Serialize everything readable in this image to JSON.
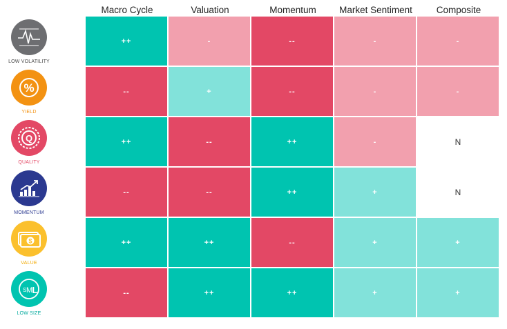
{
  "columns": [
    "Macro Cycle",
    "Valuation",
    "Momentum",
    "Market Sentiment",
    "Composite"
  ],
  "colors": {
    "strong_pos": "#00c4b0",
    "weak_pos": "#82e2da",
    "strong_neg": "#e34865",
    "weak_neg": "#f2a0ae",
    "neutral": "#ffffff"
  },
  "factors": [
    {
      "label": "LOW VOLATILITY",
      "icon": "low-volatility-icon",
      "color": "#6d6e71",
      "label_color": "#444444",
      "cells": [
        "++",
        "-",
        "--",
        "-",
        "-"
      ]
    },
    {
      "label": "YIELD",
      "icon": "percent-icon",
      "color": "#f39212",
      "label_color": "#f39212",
      "cells": [
        "--",
        "+",
        "--",
        "-",
        "-"
      ]
    },
    {
      "label": "QUALITY",
      "icon": "quality-seal-icon",
      "color": "#e34865",
      "label_color": "#e34865",
      "cells": [
        "++",
        "--",
        "++",
        "-",
        "N"
      ]
    },
    {
      "label": "MOMENTUM",
      "icon": "trend-chart-icon",
      "color": "#2b3990",
      "label_color": "#2b3990",
      "cells": [
        "--",
        "--",
        "++",
        "+",
        "N"
      ]
    },
    {
      "label": "VALUE",
      "icon": "dollar-bill-icon",
      "color": "#fbc02d",
      "label_color": "#f2a900",
      "cells": [
        "++",
        "++",
        "--",
        "+",
        "+"
      ]
    },
    {
      "label": "LOW SIZE",
      "icon": "sml-size-icon",
      "color": "#00c4b0",
      "label_color": "#00a99d",
      "cells": [
        "--",
        "++",
        "++",
        "+",
        "+"
      ]
    }
  ]
}
